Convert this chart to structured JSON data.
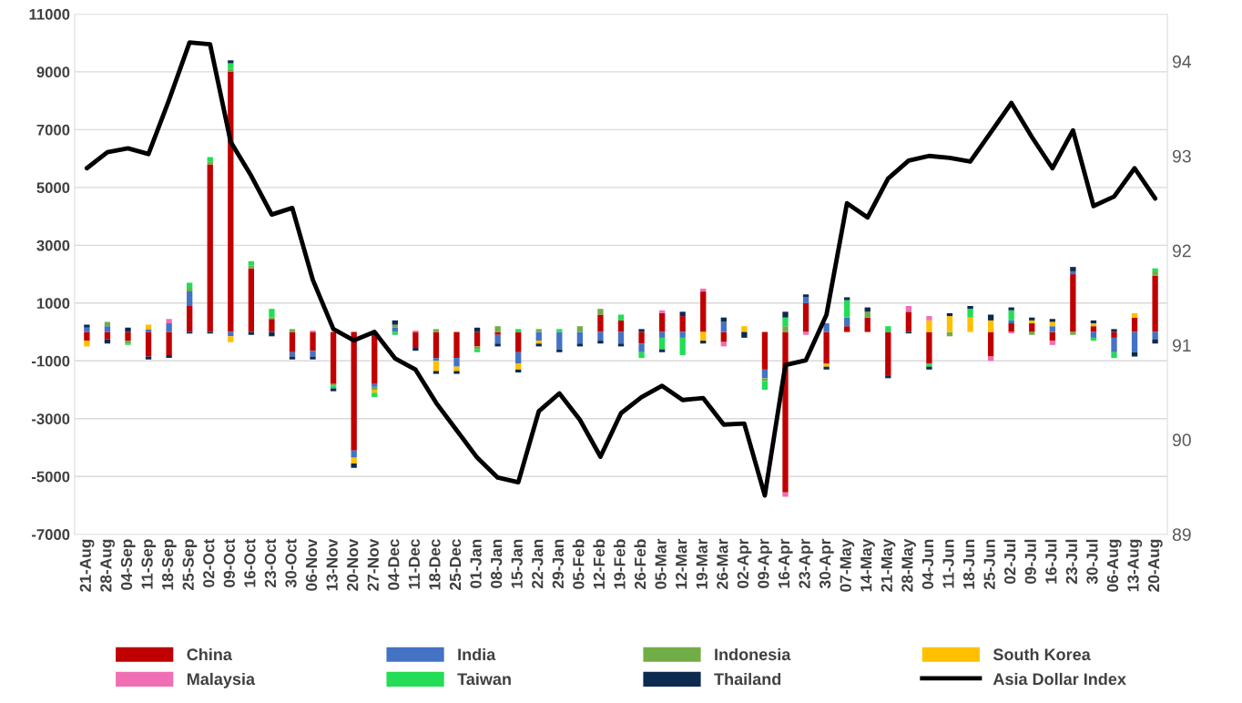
{
  "chart_data": {
    "type": "bar",
    "stacked": true,
    "grid": "y",
    "legend": "bottom",
    "categories": [
      "21-Aug",
      "28-Aug",
      "04-Sep",
      "11-Sep",
      "18-Sep",
      "25-Sep",
      "02-Oct",
      "09-Oct",
      "16-Oct",
      "23-Oct",
      "30-Oct",
      "06-Nov",
      "13-Nov",
      "20-Nov",
      "27-Nov",
      "04-Dec",
      "11-Dec",
      "18-Dec",
      "25-Dec",
      "01-Jan",
      "08-Jan",
      "15-Jan",
      "22-Jan",
      "29-Jan",
      "05-Feb",
      "12-Feb",
      "19-Feb",
      "26-Feb",
      "05-Mar",
      "12-Mar",
      "19-Mar",
      "26-Mar",
      "02-Apr",
      "09-Apr",
      "16-Apr",
      "23-Apr",
      "30-Apr",
      "07-May",
      "14-May",
      "21-May",
      "28-May",
      "04-Jun",
      "11-Jun",
      "18-Jun",
      "25-Jun",
      "02-Jul",
      "09-Jul",
      "16-Jul",
      "23-Jul",
      "30-Jul",
      "06-Aug",
      "13-Aug",
      "20-Aug"
    ],
    "ylim": [
      -7000,
      11000
    ],
    "yticks": [
      -7000,
      -5000,
      -3000,
      -1000,
      1000,
      3000,
      5000,
      7000,
      9000,
      11000
    ],
    "y2lim": [
      89,
      94.5
    ],
    "y2ticks": [
      89,
      90,
      91,
      92,
      93,
      94
    ],
    "series": [
      {
        "name": "China",
        "color": "#c00000",
        "values": [
          -300,
          -250,
          -300,
          -850,
          -800,
          900,
          5800,
          9000,
          2200,
          450,
          -700,
          -650,
          -1800,
          -4100,
          -1800,
          0,
          -550,
          -900,
          -900,
          -500,
          -100,
          -700,
          0,
          0,
          0,
          600,
          400,
          -400,
          650,
          550,
          1400,
          -350,
          0,
          -1300,
          -5550,
          1000,
          -1100,
          200,
          500,
          -1500,
          700,
          -1100,
          0,
          0,
          -850,
          300,
          300,
          -300,
          2000,
          200,
          -200,
          500,
          1950
        ]
      },
      {
        "name": "India",
        "color": "#4472c4",
        "values": [
          150,
          200,
          0,
          100,
          300,
          500,
          0,
          -150,
          0,
          0,
          -150,
          -200,
          0,
          -250,
          -100,
          150,
          0,
          -100,
          -300,
          0,
          -300,
          -400,
          -300,
          -600,
          -400,
          -300,
          -400,
          -300,
          -200,
          -200,
          0,
          350,
          0,
          -300,
          0,
          200,
          300,
          300,
          0,
          0,
          0,
          0,
          0,
          0,
          0,
          100,
          0,
          200,
          100,
          -200,
          -500,
          -700,
          -250
        ]
      },
      {
        "name": "Indonesia",
        "color": "#70ad47",
        "values": [
          0,
          150,
          -100,
          0,
          0,
          100,
          100,
          100,
          100,
          50,
          100,
          0,
          -50,
          0,
          -100,
          100,
          0,
          100,
          0,
          -100,
          200,
          0,
          100,
          0,
          200,
          200,
          0,
          0,
          0,
          0,
          0,
          0,
          0,
          -100,
          200,
          0,
          0,
          0,
          200,
          0,
          0,
          0,
          -150,
          0,
          0,
          0,
          -100,
          0,
          -100,
          0,
          0,
          0,
          150
        ]
      },
      {
        "name": "South Korea",
        "color": "#ffc000",
        "values": [
          -200,
          0,
          0,
          150,
          0,
          0,
          0,
          -200,
          0,
          0,
          0,
          0,
          0,
          -200,
          -100,
          0,
          0,
          -350,
          -150,
          0,
          0,
          -200,
          -100,
          0,
          0,
          0,
          0,
          0,
          0,
          0,
          -300,
          0,
          200,
          0,
          0,
          0,
          -100,
          0,
          0,
          0,
          0,
          400,
          550,
          500,
          400,
          0,
          100,
          150,
          0,
          100,
          0,
          150,
          0
        ]
      },
      {
        "name": "Malaysia",
        "color": "#f06fb4",
        "values": [
          0,
          0,
          0,
          0,
          150,
          0,
          0,
          0,
          0,
          0,
          0,
          50,
          0,
          0,
          0,
          0,
          50,
          0,
          0,
          0,
          0,
          0,
          0,
          0,
          0,
          0,
          0,
          0,
          100,
          0,
          100,
          -150,
          0,
          0,
          -150,
          -100,
          0,
          0,
          0,
          0,
          200,
          150,
          0,
          0,
          -150,
          -50,
          0,
          -150,
          0,
          0,
          0,
          0,
          0
        ]
      },
      {
        "name": "Taiwan",
        "color": "#22dd55",
        "values": [
          0,
          0,
          -50,
          0,
          0,
          200,
          150,
          200,
          150,
          300,
          0,
          0,
          -100,
          0,
          -150,
          -100,
          0,
          0,
          0,
          -100,
          0,
          100,
          0,
          100,
          0,
          0,
          200,
          -200,
          -400,
          -600,
          0,
          0,
          0,
          -300,
          300,
          0,
          0,
          600,
          0,
          200,
          0,
          -100,
          0,
          300,
          0,
          350,
          0,
          0,
          0,
          -100,
          -200,
          0,
          100
        ]
      },
      {
        "name": "Thailand",
        "color": "#0d2a4f",
        "values": [
          100,
          -150,
          150,
          -100,
          -100,
          -50,
          -50,
          100,
          -100,
          -150,
          -100,
          -100,
          -100,
          -150,
          0,
          150,
          -100,
          -100,
          -100,
          150,
          -100,
          -100,
          -100,
          -100,
          -100,
          -100,
          -100,
          100,
          -100,
          150,
          -100,
          150,
          -200,
          0,
          200,
          100,
          -100,
          100,
          150,
          -100,
          -50,
          -100,
          100,
          100,
          200,
          100,
          100,
          100,
          150,
          100,
          100,
          -150,
          -150
        ]
      },
      {
        "name": "Asia Dollar Index",
        "type": "line",
        "axis": "y2",
        "color": "#000000",
        "values": [
          92.87,
          93.04,
          93.08,
          93.02,
          93.59,
          94.2,
          94.18,
          93.15,
          92.79,
          92.38,
          92.45,
          91.69,
          91.17,
          91.05,
          91.14,
          90.86,
          90.74,
          90.39,
          90.1,
          89.81,
          89.6,
          89.55,
          90.3,
          90.49,
          90.21,
          89.82,
          90.28,
          90.45,
          90.57,
          90.42,
          90.44,
          90.16,
          90.17,
          89.41,
          90.79,
          90.84,
          91.32,
          92.5,
          92.35,
          92.76,
          92.95,
          93.0,
          92.98,
          92.94,
          93.25,
          93.56,
          93.2,
          92.87,
          93.27,
          92.47,
          92.57,
          92.87,
          92.55
        ]
      }
    ]
  }
}
